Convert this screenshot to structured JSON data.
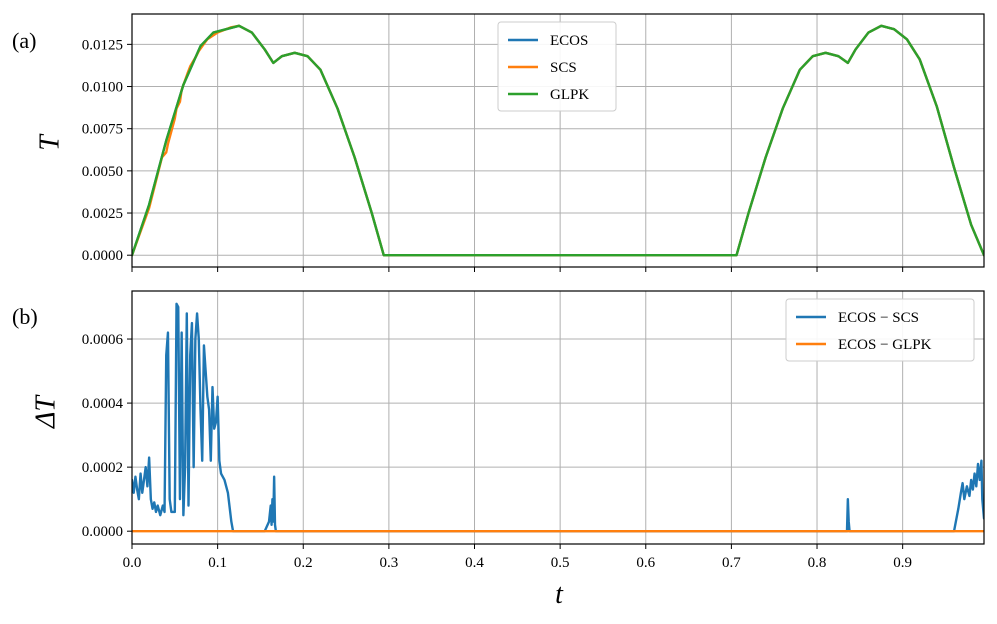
{
  "chart_data": [
    {
      "type": "line",
      "panel_label": "(a)",
      "ylabel": "T",
      "xlabel": "",
      "xlim": [
        0.0,
        0.995
      ],
      "ylim": [
        -0.0007,
        0.0143
      ],
      "xticks": [
        0.0,
        0.1,
        0.2,
        0.3,
        0.4,
        0.5,
        0.6,
        0.7,
        0.8,
        0.9
      ],
      "yticks": [
        0.0,
        0.0025,
        0.005,
        0.0075,
        0.01,
        0.0125
      ],
      "ytick_labels": [
        "0.0000",
        "0.0025",
        "0.0050",
        "0.0075",
        "0.0100",
        "0.0125"
      ],
      "grid": true,
      "legend_position": "top-center",
      "series": [
        {
          "name": "ECOS",
          "color": "#1f77b4",
          "x": [
            0,
            0.02,
            0.04,
            0.06,
            0.08,
            0.095,
            0.11,
            0.125,
            0.14,
            0.155,
            0.165,
            0.175,
            0.19,
            0.205,
            0.22,
            0.24,
            0.26,
            0.28,
            0.294,
            0.5,
            0.706,
            0.72,
            0.74,
            0.76,
            0.78,
            0.795,
            0.81,
            0.825,
            0.836,
            0.845,
            0.86,
            0.875,
            0.89,
            0.905,
            0.92,
            0.94,
            0.96,
            0.98,
            0.995
          ],
          "y": [
            0,
            0.003,
            0.0068,
            0.0101,
            0.0124,
            0.0132,
            0.0134,
            0.0136,
            0.0132,
            0.0122,
            0.0114,
            0.0118,
            0.012,
            0.0118,
            0.011,
            0.0087,
            0.0058,
            0.0025,
            0,
            0,
            0,
            0.0025,
            0.0058,
            0.0087,
            0.011,
            0.0118,
            0.012,
            0.0118,
            0.0114,
            0.0122,
            0.0132,
            0.0136,
            0.0134,
            0.0128,
            0.0116,
            0.0088,
            0.0052,
            0.0018,
            0
          ]
        },
        {
          "name": "SCS",
          "color": "#ff7f0e",
          "x": [
            0,
            0.02,
            0.035,
            0.04,
            0.042,
            0.05,
            0.052,
            0.056,
            0.058,
            0.065,
            0.068,
            0.075,
            0.078,
            0.085,
            0.088,
            0.1,
            0.115,
            0.125,
            0.14,
            0.155,
            0.165,
            0.175,
            0.19,
            0.205,
            0.22,
            0.24,
            0.26,
            0.28,
            0.294,
            0.5,
            0.706,
            0.72,
            0.74,
            0.76,
            0.78,
            0.795,
            0.81,
            0.825,
            0.836,
            0.845,
            0.86,
            0.875,
            0.89,
            0.905,
            0.92,
            0.94,
            0.96,
            0.98,
            0.995
          ],
          "y": [
            0,
            0.0028,
            0.0058,
            0.0061,
            0.0066,
            0.0081,
            0.0087,
            0.0091,
            0.0098,
            0.0108,
            0.0112,
            0.0118,
            0.0121,
            0.0126,
            0.0128,
            0.0132,
            0.0135,
            0.0136,
            0.0132,
            0.0122,
            0.0114,
            0.0118,
            0.012,
            0.0118,
            0.011,
            0.0087,
            0.0058,
            0.0025,
            0,
            0,
            0,
            0.0025,
            0.0058,
            0.0087,
            0.011,
            0.0118,
            0.012,
            0.0118,
            0.0114,
            0.0122,
            0.0132,
            0.0136,
            0.0134,
            0.0128,
            0.0116,
            0.0088,
            0.0052,
            0.0018,
            0
          ]
        },
        {
          "name": "GLPK",
          "color": "#2ca02c",
          "x": [
            0,
            0.02,
            0.04,
            0.06,
            0.08,
            0.095,
            0.11,
            0.125,
            0.14,
            0.155,
            0.165,
            0.175,
            0.19,
            0.205,
            0.22,
            0.24,
            0.26,
            0.28,
            0.294,
            0.5,
            0.706,
            0.72,
            0.74,
            0.76,
            0.78,
            0.795,
            0.81,
            0.825,
            0.836,
            0.845,
            0.86,
            0.875,
            0.89,
            0.905,
            0.92,
            0.94,
            0.96,
            0.98,
            0.995
          ],
          "y": [
            0,
            0.003,
            0.0068,
            0.0101,
            0.0124,
            0.0132,
            0.0134,
            0.0136,
            0.0132,
            0.0122,
            0.0114,
            0.0118,
            0.012,
            0.0118,
            0.011,
            0.0087,
            0.0058,
            0.0025,
            0,
            0,
            0,
            0.0025,
            0.0058,
            0.0087,
            0.011,
            0.0118,
            0.012,
            0.0118,
            0.0114,
            0.0122,
            0.0132,
            0.0136,
            0.0134,
            0.0128,
            0.0116,
            0.0088,
            0.0052,
            0.0018,
            0
          ]
        }
      ]
    },
    {
      "type": "line",
      "panel_label": "(b)",
      "ylabel": "ΔT",
      "xlabel": "t",
      "xlim": [
        0.0,
        0.995
      ],
      "ylim": [
        -4e-05,
        0.00075
      ],
      "xticks": [
        0.0,
        0.1,
        0.2,
        0.3,
        0.4,
        0.5,
        0.6,
        0.7,
        0.8,
        0.9
      ],
      "xtick_labels": [
        "0.0",
        "0.1",
        "0.2",
        "0.3",
        "0.4",
        "0.5",
        "0.6",
        "0.7",
        "0.8",
        "0.9"
      ],
      "yticks": [
        0.0,
        0.0002,
        0.0004,
        0.0006
      ],
      "ytick_labels": [
        "0.0000",
        "0.0002",
        "0.0004",
        "0.0006"
      ],
      "grid": true,
      "legend_position": "top-right",
      "series": [
        {
          "name": "ECOS − SCS",
          "color": "#1f77b4",
          "x": [
            0,
            0.002,
            0.004,
            0.006,
            0.008,
            0.01,
            0.012,
            0.014,
            0.016,
            0.018,
            0.02,
            0.022,
            0.024,
            0.026,
            0.028,
            0.03,
            0.033,
            0.036,
            0.038,
            0.04,
            0.042,
            0.044,
            0.046,
            0.048,
            0.05,
            0.052,
            0.054,
            0.056,
            0.058,
            0.06,
            0.062,
            0.064,
            0.066,
            0.068,
            0.07,
            0.072,
            0.074,
            0.076,
            0.078,
            0.08,
            0.082,
            0.084,
            0.086,
            0.088,
            0.09,
            0.092,
            0.094,
            0.096,
            0.098,
            0.1,
            0.102,
            0.104,
            0.108,
            0.112,
            0.116,
            0.118,
            0.155,
            0.16,
            0.162,
            0.163,
            0.164,
            0.165,
            0.166,
            0.167,
            0.168,
            0.17,
            0.835,
            0.836,
            0.837,
            0.838,
            0.84,
            0.96,
            0.965,
            0.968,
            0.97,
            0.972,
            0.975,
            0.978,
            0.98,
            0.982,
            0.984,
            0.986,
            0.988,
            0.99,
            0.992,
            0.993,
            0.995
          ],
          "y": [
            0.00016,
            0.00012,
            0.00017,
            0.00013,
            0.0001,
            0.00018,
            0.00012,
            0.00016,
            0.0002,
            0.00014,
            0.00023,
            0.0001,
            7e-05,
            9e-05,
            6e-05,
            8e-05,
            5e-05,
            8e-05,
            6e-05,
            0.00055,
            0.00062,
            0.0001,
            6e-05,
            6e-05,
            6e-05,
            0.00071,
            0.0007,
            0.0001,
            0.00062,
            5e-05,
            0.0002,
            0.00068,
            8e-05,
            0.00055,
            0.00065,
            0.0002,
            0.0006,
            0.00068,
            0.0006,
            0.00038,
            0.00022,
            0.00058,
            0.0005,
            0.00042,
            0.00038,
            0.00022,
            0.00045,
            0.00032,
            0.00034,
            0.00042,
            0.00022,
            0.00018,
            0.00016,
            0.00012,
            3e-05,
            0.0,
            0.0,
            3e-05,
            8e-05,
            2e-05,
            0.0001,
            3e-05,
            0.00017,
            2e-05,
            0.0,
            0.0,
            0.0,
            0.0001,
            3e-05,
            0.0,
            0.0,
            0.0,
            7e-05,
            0.00012,
            0.00015,
            0.0001,
            0.00014,
            0.00011,
            0.00016,
            0.00013,
            0.00018,
            0.00014,
            0.00021,
            0.00016,
            0.00022,
            0.0001,
            4e-05
          ]
        },
        {
          "name": "ECOS − GLPK",
          "color": "#ff7f0e",
          "x": [
            0.0,
            0.995
          ],
          "y": [
            0.0,
            0.0
          ]
        }
      ]
    }
  ]
}
